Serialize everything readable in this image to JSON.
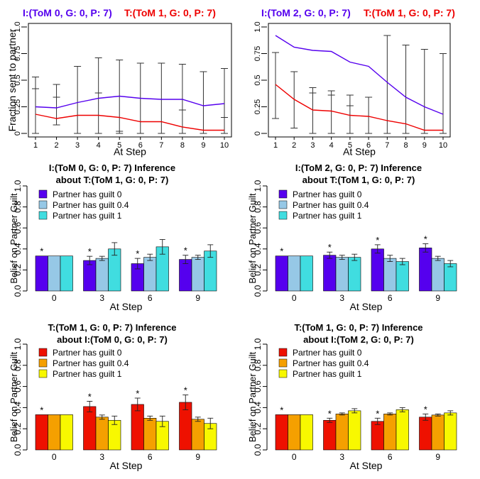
{
  "chart_data": [
    {
      "type": "line",
      "header_left": "I:(ToM 0, G: 0, P: 7)",
      "header_right": "T:(ToM 1, G: 0, P: 7)",
      "header_left_color": "#5500ee",
      "header_right_color": "#ee0000",
      "xlabel": "At Step",
      "ylabel": "Fraction sent to partner",
      "x": [
        1,
        2,
        3,
        4,
        5,
        6,
        7,
        8,
        9,
        10
      ],
      "xlim": [
        1,
        10
      ],
      "ylim": [
        0,
        1
      ],
      "yticks": [
        "0",
        "0.25",
        "0.5",
        "0.75",
        "1.0"
      ],
      "series": [
        {
          "color": "#5500ee",
          "values": [
            0.25,
            0.24,
            0.29,
            0.33,
            0.35,
            0.33,
            0.32,
            0.32,
            0.26,
            0.28
          ]
        },
        {
          "color": "#ee0000",
          "values": [
            0.18,
            0.14,
            0.17,
            0.17,
            0.15,
            0.11,
            0.11,
            0.06,
            0.03,
            0.03
          ]
        }
      ],
      "error_bars": [
        {
          "x": 1,
          "low": 0.0,
          "high": 0.53,
          "ticks": [
            0.0,
            0.42,
            0.53
          ]
        },
        {
          "x": 2,
          "low": 0.08,
          "high": 0.46,
          "ticks": [
            0.08,
            0.34,
            0.46
          ]
        },
        {
          "x": 3,
          "low": 0.0,
          "high": 0.63,
          "ticks": [
            0.0,
            0.63
          ]
        },
        {
          "x": 4,
          "low": 0.0,
          "high": 0.71,
          "ticks": [
            0.0,
            0.38,
            0.71
          ]
        },
        {
          "x": 5,
          "low": 0.0,
          "high": 0.69,
          "ticks": [
            0.0,
            0.02,
            0.69
          ]
        },
        {
          "x": 6,
          "low": 0.0,
          "high": 0.66,
          "ticks": [
            0.0,
            0.66
          ]
        },
        {
          "x": 7,
          "low": 0.0,
          "high": 0.66,
          "ticks": [
            0.0,
            0.66
          ]
        },
        {
          "x": 8,
          "low": 0.0,
          "high": 0.65,
          "ticks": [
            0.0,
            0.22,
            0.65
          ]
        },
        {
          "x": 9,
          "low": 0.0,
          "high": 0.58,
          "ticks": [
            0.0,
            0.58
          ]
        },
        {
          "x": 10,
          "low": 0.0,
          "high": 0.61,
          "ticks": [
            0.0,
            0.15,
            0.61
          ]
        }
      ]
    },
    {
      "type": "line",
      "header_left": "I:(ToM 2, G: 0, P: 7)",
      "header_right": "T:(ToM 1, G: 0, P: 7)",
      "header_left_color": "#5500ee",
      "header_right_color": "#ee0000",
      "xlabel": "At Step",
      "ylabel": "",
      "x": [
        1,
        2,
        3,
        4,
        5,
        6,
        7,
        8,
        9,
        10
      ],
      "xlim": [
        1,
        10
      ],
      "ylim": [
        0,
        1
      ],
      "yticks": [
        "0",
        "0.25",
        "0.5",
        "0.75",
        "1.0"
      ],
      "series": [
        {
          "color": "#5500ee",
          "values": [
            0.92,
            0.81,
            0.78,
            0.77,
            0.67,
            0.63,
            0.48,
            0.34,
            0.25,
            0.18
          ]
        },
        {
          "color": "#ee0000",
          "values": [
            0.46,
            0.32,
            0.22,
            0.21,
            0.17,
            0.16,
            0.12,
            0.09,
            0.03,
            0.03
          ]
        }
      ],
      "error_bars": [
        {
          "x": 1,
          "low": 0.14,
          "high": 0.76,
          "ticks": [
            0.14,
            0.76
          ]
        },
        {
          "x": 2,
          "low": 0.05,
          "high": 0.58,
          "ticks": [
            0.05,
            0.58
          ]
        },
        {
          "x": 3,
          "low": 0.0,
          "high": 0.43,
          "ticks": [
            0.0,
            0.38,
            0.43
          ]
        },
        {
          "x": 4,
          "low": 0.0,
          "high": 0.4,
          "ticks": [
            0.0,
            0.36,
            0.4
          ]
        },
        {
          "x": 5,
          "low": 0.0,
          "high": 0.36,
          "ticks": [
            0.0,
            0.26,
            0.36
          ]
        },
        {
          "x": 6,
          "low": 0.0,
          "high": 0.34,
          "ticks": [
            0.0,
            0.34
          ]
        },
        {
          "x": 7,
          "low": 0.0,
          "high": 0.92,
          "ticks": [
            0.0,
            0.92
          ]
        },
        {
          "x": 8,
          "low": 0.0,
          "high": 0.83,
          "ticks": [
            0.0,
            0.83
          ]
        },
        {
          "x": 9,
          "low": 0.0,
          "high": 0.79,
          "ticks": [
            0.0,
            0.79
          ]
        },
        {
          "x": 10,
          "low": 0.0,
          "high": 0.75,
          "ticks": [
            0.0,
            0.75
          ]
        }
      ]
    },
    {
      "type": "bar",
      "title_lines": [
        "I:(ToM 0, G: 0, P: 7) Inference",
        "about T:(ToM 1, G: 0, P: 7)"
      ],
      "xlabel": "At Step",
      "ylabel": "Belief on Partner Guilt",
      "categories": [
        "0",
        "3",
        "6",
        "9"
      ],
      "ylim": [
        0,
        1
      ],
      "yticks": [
        "0.0",
        "0.2",
        "0.4",
        "0.6",
        "0.8",
        "1.0"
      ],
      "legend_position": "top-left",
      "series": [
        {
          "name": "Partner has guilt 0",
          "color": "#5500ee",
          "values": [
            0.333,
            0.29,
            0.26,
            0.3
          ],
          "err": [
            0,
            0.04,
            0.05,
            0.04
          ]
        },
        {
          "name": "Partner has guilt 0.4",
          "color": "#96c8e6",
          "values": [
            0.333,
            0.31,
            0.32,
            0.32
          ],
          "err": [
            0,
            0.02,
            0.03,
            0.02
          ]
        },
        {
          "name": "Partner has guilt 1",
          "color": "#40dde0",
          "values": [
            0.333,
            0.4,
            0.42,
            0.38
          ],
          "err": [
            0,
            0.06,
            0.07,
            0.06
          ]
        }
      ],
      "stars": [
        "*",
        "*",
        "*",
        "*"
      ]
    },
    {
      "type": "bar",
      "title_lines": [
        "I:(ToM 2, G: 0, P: 7) Inference",
        "about T:(ToM 1, G: 0, P: 7)"
      ],
      "xlabel": "At Step",
      "ylabel": "Belief on Partner Guilt",
      "categories": [
        "0",
        "3",
        "6",
        "9"
      ],
      "ylim": [
        0,
        1
      ],
      "yticks": [
        "0.0",
        "0.2",
        "0.4",
        "0.6",
        "0.8",
        "1.0"
      ],
      "legend_position": "top-left",
      "series": [
        {
          "name": "Partner has guilt 0",
          "color": "#5500ee",
          "values": [
            0.333,
            0.34,
            0.4,
            0.41
          ],
          "err": [
            0,
            0.03,
            0.04,
            0.04
          ]
        },
        {
          "name": "Partner has guilt 0.4",
          "color": "#96c8e6",
          "values": [
            0.333,
            0.32,
            0.31,
            0.31
          ],
          "err": [
            0,
            0.02,
            0.03,
            0.02
          ]
        },
        {
          "name": "Partner has guilt 1",
          "color": "#40dde0",
          "values": [
            0.333,
            0.32,
            0.28,
            0.26
          ],
          "err": [
            0,
            0.03,
            0.03,
            0.03
          ]
        }
      ],
      "stars": [
        "*",
        "*",
        "*",
        "*"
      ]
    },
    {
      "type": "bar",
      "title_lines": [
        "T:(ToM 1, G: 0, P: 7) Inference",
        "about I:(ToM 0, G: 0, P: 7)"
      ],
      "xlabel": "At Step",
      "ylabel": "Belief on Partner Guilt",
      "categories": [
        "0",
        "3",
        "6",
        "9"
      ],
      "ylim": [
        0,
        1
      ],
      "yticks": [
        "0.0",
        "0.2",
        "0.4",
        "0.6",
        "0.8",
        "1.0"
      ],
      "legend_position": "top-left",
      "series": [
        {
          "name": "Partner has guilt 0",
          "color": "#ee1100",
          "values": [
            0.333,
            0.41,
            0.43,
            0.45
          ],
          "err": [
            0,
            0.05,
            0.06,
            0.07
          ]
        },
        {
          "name": "Partner has guilt 0.4",
          "color": "#f5a000",
          "values": [
            0.333,
            0.31,
            0.3,
            0.29
          ],
          "err": [
            0,
            0.02,
            0.02,
            0.02
          ]
        },
        {
          "name": "Partner has guilt 1",
          "color": "#f8f800",
          "values": [
            0.333,
            0.28,
            0.27,
            0.25
          ],
          "err": [
            0,
            0.04,
            0.05,
            0.05
          ]
        }
      ],
      "stars": [
        "*",
        "*",
        "*",
        "*"
      ]
    },
    {
      "type": "bar",
      "title_lines": [
        "T:(ToM 1, G: 0, P: 7) Inference",
        "about I:(ToM 2, G: 0, P: 7)"
      ],
      "xlabel": "At Step",
      "ylabel": "Belief on Partner Guilt",
      "categories": [
        "0",
        "3",
        "6",
        "9"
      ],
      "ylim": [
        0,
        1
      ],
      "yticks": [
        "0.0",
        "0.2",
        "0.4",
        "0.6",
        "0.8",
        "1.0"
      ],
      "legend_position": "top-left",
      "series": [
        {
          "name": "Partner has guilt 0",
          "color": "#ee1100",
          "values": [
            0.333,
            0.28,
            0.27,
            0.31
          ],
          "err": [
            0,
            0.02,
            0.03,
            0.03
          ]
        },
        {
          "name": "Partner has guilt 0.4",
          "color": "#f5a000",
          "values": [
            0.333,
            0.34,
            0.34,
            0.33
          ],
          "err": [
            0,
            0.01,
            0.01,
            0.01
          ]
        },
        {
          "name": "Partner has guilt 1",
          "color": "#f8f800",
          "values": [
            0.333,
            0.37,
            0.38,
            0.35
          ],
          "err": [
            0,
            0.02,
            0.02,
            0.02
          ]
        }
      ],
      "stars": [
        "*",
        "*",
        "*",
        "*"
      ]
    }
  ]
}
